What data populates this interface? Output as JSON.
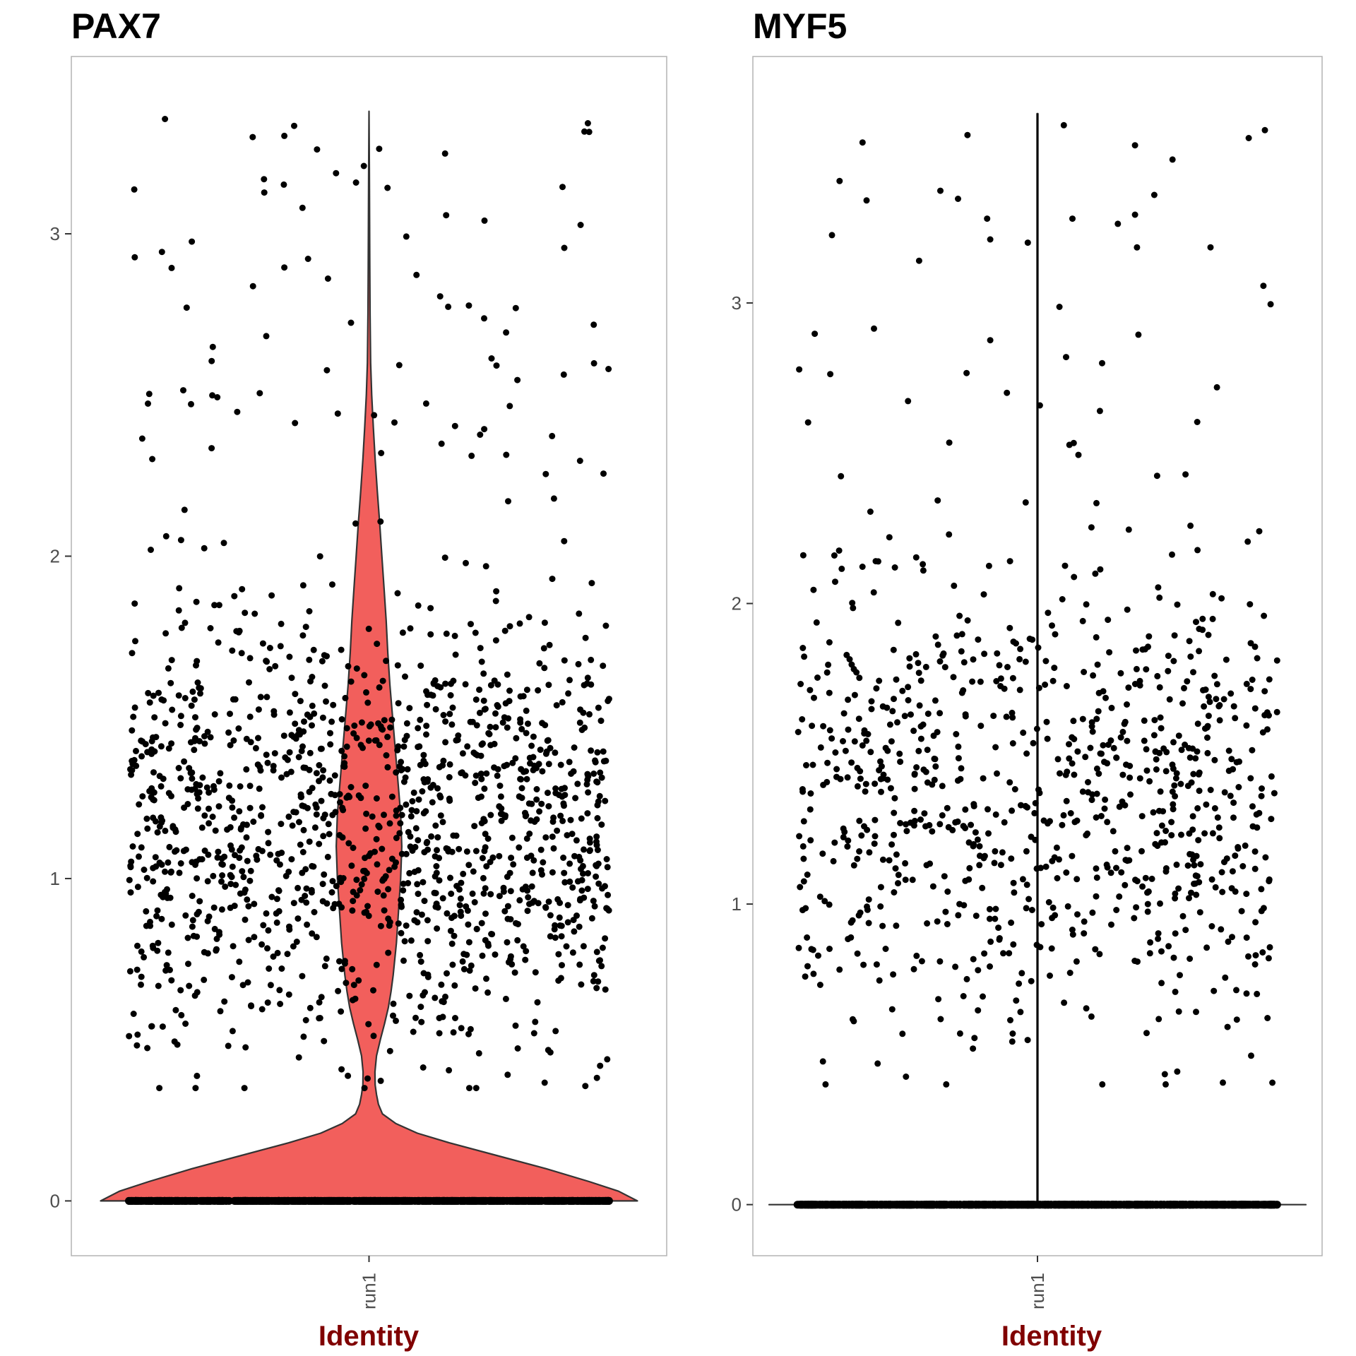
{
  "colors": {
    "violin_fill": "#f25f5c",
    "point": "#000000",
    "axis_title": "#800000",
    "frame": "#b3b3b3",
    "tick_text": "#4d4d4d"
  },
  "chart_data": [
    {
      "type": "violin",
      "title": "PAX7",
      "xlabel": "Identity",
      "ylabel": "",
      "categories": [
        "run1"
      ],
      "ylim": [
        -0.17,
        3.55
      ],
      "yticks": [
        0,
        1,
        2,
        3
      ],
      "ytick_labels": [
        "0",
        "1",
        "2",
        "3"
      ],
      "violin": {
        "max_value": 3.38,
        "density_profile": [
          [
            0.0,
            1.0
          ],
          [
            0.03,
            0.93
          ],
          [
            0.06,
            0.82
          ],
          [
            0.1,
            0.66
          ],
          [
            0.14,
            0.48
          ],
          [
            0.18,
            0.3
          ],
          [
            0.21,
            0.18
          ],
          [
            0.24,
            0.1
          ],
          [
            0.27,
            0.05
          ],
          [
            0.3,
            0.035
          ],
          [
            0.33,
            0.028
          ],
          [
            0.36,
            0.023
          ],
          [
            0.4,
            0.022
          ],
          [
            0.45,
            0.028
          ],
          [
            0.5,
            0.042
          ],
          [
            0.55,
            0.058
          ],
          [
            0.6,
            0.072
          ],
          [
            0.65,
            0.082
          ],
          [
            0.7,
            0.09
          ],
          [
            0.8,
            0.102
          ],
          [
            0.9,
            0.11
          ],
          [
            1.0,
            0.118
          ],
          [
            1.1,
            0.122
          ],
          [
            1.2,
            0.118
          ],
          [
            1.3,
            0.108
          ],
          [
            1.4,
            0.098
          ],
          [
            1.5,
            0.088
          ],
          [
            1.6,
            0.078
          ],
          [
            1.7,
            0.07
          ],
          [
            1.8,
            0.064
          ],
          [
            1.9,
            0.056
          ],
          [
            2.0,
            0.048
          ],
          [
            2.1,
            0.04
          ],
          [
            2.2,
            0.031
          ],
          [
            2.3,
            0.023
          ],
          [
            2.4,
            0.016
          ],
          [
            2.5,
            0.01
          ],
          [
            2.6,
            0.006
          ],
          [
            2.75,
            0.004
          ],
          [
            2.9,
            0.003
          ],
          [
            3.05,
            0.002
          ],
          [
            3.2,
            0.0012
          ],
          [
            3.38,
            0.0
          ]
        ]
      },
      "points": {
        "seed": 11,
        "positive_count": 1400,
        "zero_count": 900,
        "positive_range": [
          0.35,
          3.4
        ],
        "max_value": 3.38,
        "center": 1.15,
        "spread": 0.5
      }
    },
    {
      "type": "violin",
      "title": "MYF5",
      "xlabel": "Identity",
      "ylabel": "",
      "categories": [
        "run1"
      ],
      "ylim": [
        -0.17,
        3.82
      ],
      "yticks": [
        0,
        1,
        2,
        3
      ],
      "ytick_labels": [
        "0",
        "1",
        "2",
        "3"
      ],
      "violin": {
        "max_value": 3.63,
        "density_profile": [
          [
            0.0,
            1.0
          ],
          [
            0.001,
            0.0015
          ],
          [
            3.63,
            0.0015
          ]
        ]
      },
      "points": {
        "seed": 29,
        "positive_count": 900,
        "zero_count": 900,
        "positive_range": [
          0.4,
          3.65
        ],
        "max_value": 3.63,
        "center": 1.35,
        "spread": 0.6
      }
    }
  ]
}
